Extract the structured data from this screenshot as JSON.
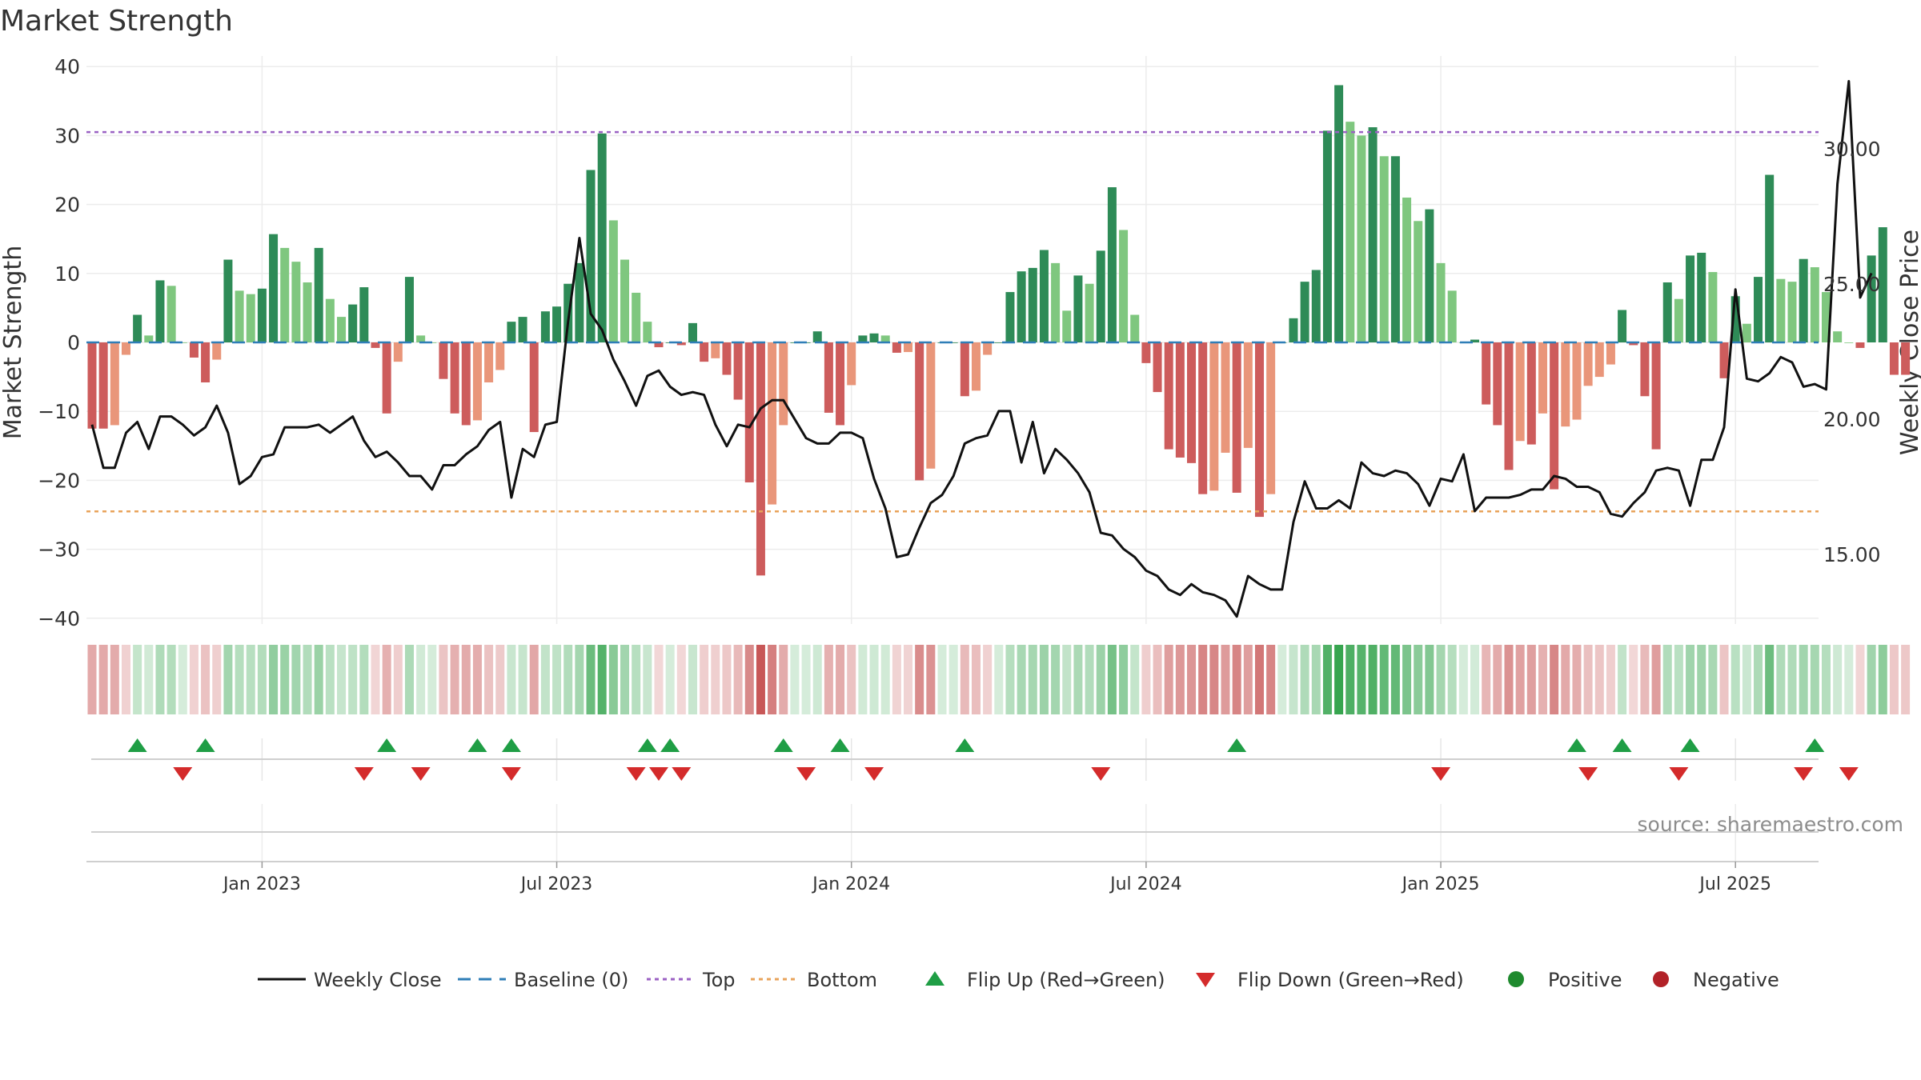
{
  "chart_data": {
    "type": "bar",
    "title": "Market Strength",
    "ylabel": "Market Strength",
    "y2label": "Weekly Close Price",
    "ylim": [
      -42,
      42
    ],
    "y2lim": [
      12.5,
      33.0
    ],
    "yticks": [
      40,
      30,
      20,
      10,
      0,
      -10,
      -20,
      -30,
      -40
    ],
    "ytick_labels": [
      "40",
      "30",
      "20",
      "10",
      "0",
      "−10",
      "−20",
      "−30",
      "−40"
    ],
    "y2ticks": [
      30.0,
      25.0,
      20.0,
      15.0
    ],
    "y2tick_labels": [
      "30.00",
      "25.00",
      "20.00",
      "15.00"
    ],
    "x_months": [
      {
        "label": "Jan 2023",
        "week": 15
      },
      {
        "label": "Jul 2023",
        "week": 41
      },
      {
        "label": "Jan 2024",
        "week": 67
      },
      {
        "label": "Jul 2024",
        "week": 93
      },
      {
        "label": "Jan 2025",
        "week": 119
      },
      {
        "label": "Jul 2025",
        "week": 145
      }
    ],
    "top_level": 30.5,
    "bottom_level": -24.5,
    "strength": [
      -12.5,
      -12.5,
      -12,
      -1.8,
      4,
      1,
      9,
      8.2,
      0,
      -2.2,
      -5.8,
      -2.5,
      12,
      7.5,
      7,
      7.8,
      15.7,
      13.7,
      11.7,
      8.7,
      13.7,
      6.3,
      3.7,
      5.5,
      8,
      -0.8,
      -10.3,
      -2.8,
      9.5,
      1,
      0,
      -5.3,
      -10.3,
      -12,
      -11.3,
      -5.8,
      -4,
      3,
      3.7,
      -13,
      4.5,
      5.2,
      8.5,
      11.5,
      25,
      30.3,
      17.7,
      12,
      7.2,
      3,
      -0.7,
      0,
      -0.4,
      2.8,
      -2.8,
      -2.3,
      -4.7,
      -8.3,
      -20.3,
      -33.8,
      -23.5,
      -12,
      0,
      0,
      1.6,
      -10.2,
      -12,
      -6.2,
      1,
      1.3,
      1,
      -1.5,
      -1.4,
      -20,
      -18.3,
      0,
      0,
      -7.8,
      -7,
      -1.8,
      0,
      7.3,
      10.3,
      10.8,
      13.4,
      11.5,
      4.6,
      9.7,
      8.5,
      13.3,
      22.5,
      16.3,
      4,
      -3,
      -7.2,
      -15.5,
      -16.7,
      -17.5,
      -22,
      -21.5,
      -16,
      -21.8,
      -15.3,
      -25.3,
      -22,
      0,
      3.5,
      8.8,
      10.5,
      30.7,
      37.3,
      32,
      30,
      31.2,
      27,
      27,
      21,
      17.6,
      19.3,
      11.5,
      7.5,
      0,
      0.4,
      -9,
      -12,
      -18.5,
      -14.3,
      -14.8,
      -10.3,
      -21.3,
      -12.2,
      -11.2,
      -6.3,
      -5,
      -3.2,
      4.7,
      -0.4,
      -7.8,
      -15.5,
      8.7,
      6.3,
      12.6,
      13,
      10.2,
      -5.2,
      6.7,
      2.7,
      9.5,
      24.3,
      9.2,
      8.8,
      12.1,
      10.9,
      7.3,
      1.6,
      0,
      -0.8,
      12.6,
      16.7,
      -4.7,
      -4.7
    ],
    "weekly_close": [
      19.8,
      18.2,
      18.2,
      19.5,
      19.9,
      18.9,
      20.1,
      20.1,
      19.8,
      19.4,
      19.7,
      20.5,
      19.5,
      17.6,
      17.9,
      18.6,
      18.7,
      19.7,
      19.7,
      19.7,
      19.8,
      19.5,
      19.8,
      20.1,
      19.2,
      18.6,
      18.8,
      18.4,
      17.9,
      17.9,
      17.4,
      18.3,
      18.3,
      18.7,
      19.0,
      19.6,
      19.9,
      17.1,
      18.9,
      18.6,
      19.8,
      19.9,
      23.6,
      26.7,
      23.9,
      23.3,
      22.2,
      21.4,
      20.5,
      21.6,
      21.8,
      21.2,
      20.9,
      21.0,
      20.9,
      19.8,
      19.0,
      19.8,
      19.7,
      20.4,
      20.7,
      20.7,
      20.0,
      19.3,
      19.1,
      19.1,
      19.5,
      19.5,
      19.3,
      17.8,
      16.7,
      14.9,
      15.0,
      16.0,
      16.9,
      17.2,
      17.9,
      19.1,
      19.3,
      19.4,
      20.3,
      20.3,
      18.4,
      19.9,
      18.0,
      18.9,
      18.5,
      18.0,
      17.3,
      15.8,
      15.7,
      15.2,
      14.9,
      14.4,
      14.2,
      13.7,
      13.5,
      13.9,
      13.6,
      13.5,
      13.3,
      12.7,
      14.2,
      13.9,
      13.7,
      13.7,
      16.2,
      17.7,
      16.7,
      16.7,
      17.0,
      16.7,
      18.4,
      18.0,
      17.9,
      18.1,
      18.0,
      17.6,
      16.8,
      17.8,
      17.7,
      18.7,
      16.6,
      17.1,
      17.1,
      17.1,
      17.2,
      17.4,
      17.4,
      17.9,
      17.8,
      17.5,
      17.5,
      17.3,
      16.5,
      16.4,
      16.9,
      17.3,
      18.1,
      18.2,
      18.1,
      16.8,
      18.5,
      18.5,
      19.7,
      24.8,
      21.5,
      21.4,
      21.7,
      22.3,
      22.1,
      21.2,
      21.3,
      21.1,
      28.7,
      32.5,
      24.5,
      25.4
    ],
    "flip_up_weeks": [
      4,
      10,
      26,
      34,
      37,
      49,
      51,
      61,
      66,
      77,
      101,
      131,
      135,
      141,
      152
    ],
    "flip_down_weeks": [
      8,
      24,
      29,
      37,
      48,
      50,
      52,
      63,
      69,
      89,
      119,
      132,
      140,
      151,
      155
    ],
    "legend": [
      {
        "label": "Weekly Close",
        "kind": "line",
        "color": "#111111"
      },
      {
        "label": "Baseline (0)",
        "kind": "dash",
        "color": "#2f7eb7"
      },
      {
        "label": "Top",
        "kind": "dot",
        "color": "#9b62c4"
      },
      {
        "label": "Bottom",
        "kind": "dot",
        "color": "#e8a35b"
      },
      {
        "label": "Flip Up (Red→Green)",
        "kind": "tri-up",
        "color": "#1f9e45"
      },
      {
        "label": "Flip Down (Green→Red)",
        "kind": "tri-down",
        "color": "#d42b2b"
      },
      {
        "label": "Positive",
        "kind": "circle",
        "color": "#1f8a2e"
      },
      {
        "label": "Negative",
        "kind": "circle",
        "color": "#b22228"
      }
    ],
    "source": "source: sharemaestro.com"
  }
}
